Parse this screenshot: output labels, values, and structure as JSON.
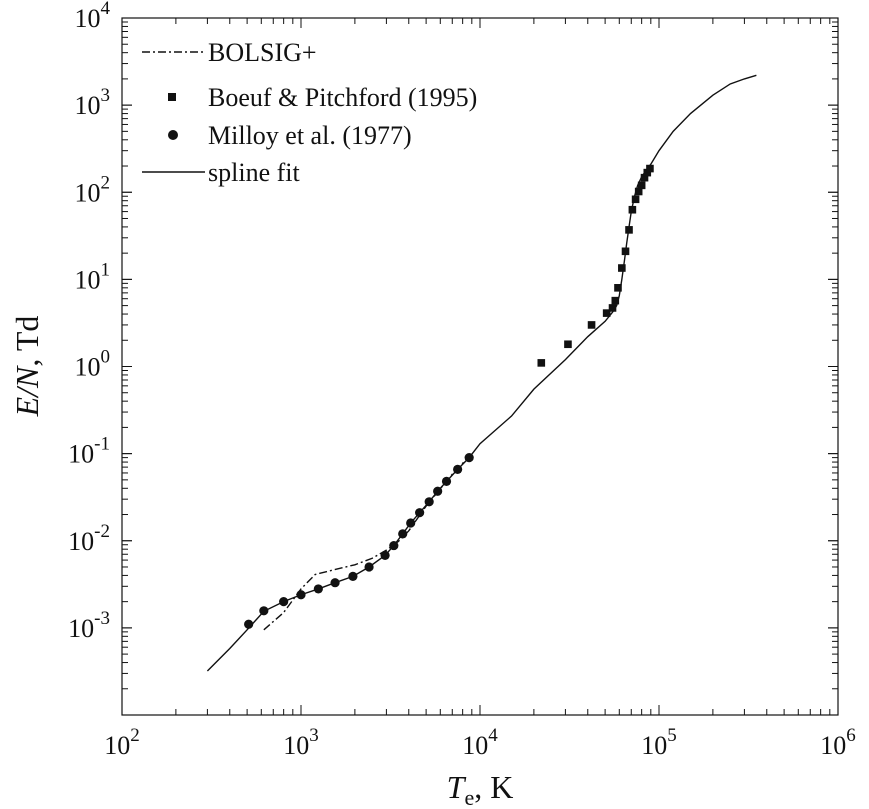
{
  "chart_data": {
    "type": "scatter",
    "title": "",
    "x_scale": "log",
    "y_scale": "log",
    "xlim": [
      100,
      1000000
    ],
    "ylim": [
      0.0001,
      10000
    ],
    "grid": false,
    "legend_position": "top-left",
    "xlabel": {
      "symbol": "T",
      "subscript": "e",
      "rest": ", K"
    },
    "ylabel": {
      "symbol": "E/N",
      "rest": ",  Td"
    },
    "x_ticks": [
      {
        "base": "10",
        "exp": "2"
      },
      {
        "base": "10",
        "exp": "3"
      },
      {
        "base": "10",
        "exp": "4"
      },
      {
        "base": "10",
        "exp": "5"
      },
      {
        "base": "10",
        "exp": "6"
      }
    ],
    "y_ticks": [
      {
        "base": "10",
        "exp": "-3"
      },
      {
        "base": "10",
        "exp": "-2"
      },
      {
        "base": "10",
        "exp": "-1"
      },
      {
        "base": "10",
        "exp": "0"
      },
      {
        "base": "10",
        "exp": "1"
      },
      {
        "base": "10",
        "exp": "2"
      },
      {
        "base": "10",
        "exp": "3"
      },
      {
        "base": "10",
        "exp": "4"
      }
    ],
    "series": [
      {
        "name": "BOLSIG+",
        "kind": "line",
        "style": "dash-dot",
        "color": "#111111",
        "x": [
          620,
          800,
          1000,
          1200,
          1500,
          2000,
          2500,
          3000,
          3500,
          4000,
          5000,
          7000,
          9000
        ],
        "y": [
          0.00095,
          0.0015,
          0.0028,
          0.0041,
          0.0046,
          0.0053,
          0.0063,
          0.0078,
          0.0098,
          0.013,
          0.025,
          0.058,
          0.1
        ]
      },
      {
        "name": "Boeuf & Pitchford (1995)",
        "kind": "marker",
        "marker": "square",
        "color": "#111111",
        "x": [
          22000,
          31000,
          42000,
          51000,
          55000,
          57000,
          59000,
          62000,
          65000,
          68000,
          71000,
          74000,
          77000,
          80000,
          83000,
          86000,
          89000
        ],
        "y": [
          1.1,
          1.8,
          3.0,
          4.1,
          4.7,
          5.7,
          8.0,
          13.5,
          21,
          37,
          63,
          83,
          102,
          120,
          147,
          168,
          187
        ]
      },
      {
        "name": "Milloy et al. (1977)",
        "kind": "marker",
        "marker": "circle",
        "color": "#111111",
        "x": [
          510,
          620,
          800,
          1000,
          1250,
          1550,
          1950,
          2400,
          2950,
          3300,
          3700,
          4100,
          4600,
          5200,
          5800,
          6500,
          7500,
          8700
        ],
        "y": [
          0.0011,
          0.00157,
          0.002,
          0.0024,
          0.0028,
          0.0033,
          0.0039,
          0.005,
          0.0068,
          0.0088,
          0.012,
          0.016,
          0.021,
          0.028,
          0.037,
          0.048,
          0.066,
          0.09
        ]
      },
      {
        "name": "spline fit",
        "kind": "line",
        "style": "solid",
        "color": "#111111",
        "x": [
          300,
          400,
          500,
          620,
          800,
          1000,
          1250,
          1550,
          1950,
          2400,
          2950,
          3300,
          3700,
          4100,
          4600,
          5200,
          5800,
          6500,
          7500,
          8700,
          10000,
          15000,
          20000,
          30000,
          40000,
          50000,
          55000,
          58000,
          60000,
          62000,
          64000,
          66000,
          68000,
          70000,
          73000,
          76000,
          80000,
          85000,
          90000,
          100000,
          120000,
          150000,
          200000,
          250000,
          300000,
          350000
        ],
        "y": [
          0.00032,
          0.00058,
          0.00095,
          0.00155,
          0.002,
          0.0024,
          0.0028,
          0.0033,
          0.0039,
          0.005,
          0.0068,
          0.0088,
          0.012,
          0.016,
          0.021,
          0.028,
          0.037,
          0.048,
          0.066,
          0.09,
          0.13,
          0.27,
          0.55,
          1.2,
          2.2,
          3.3,
          4.2,
          5.0,
          6.5,
          10,
          16,
          26,
          40,
          60,
          90,
          120,
          150,
          180,
          210,
          300,
          500,
          800,
          1300,
          1750,
          2000,
          2200
        ]
      }
    ]
  }
}
